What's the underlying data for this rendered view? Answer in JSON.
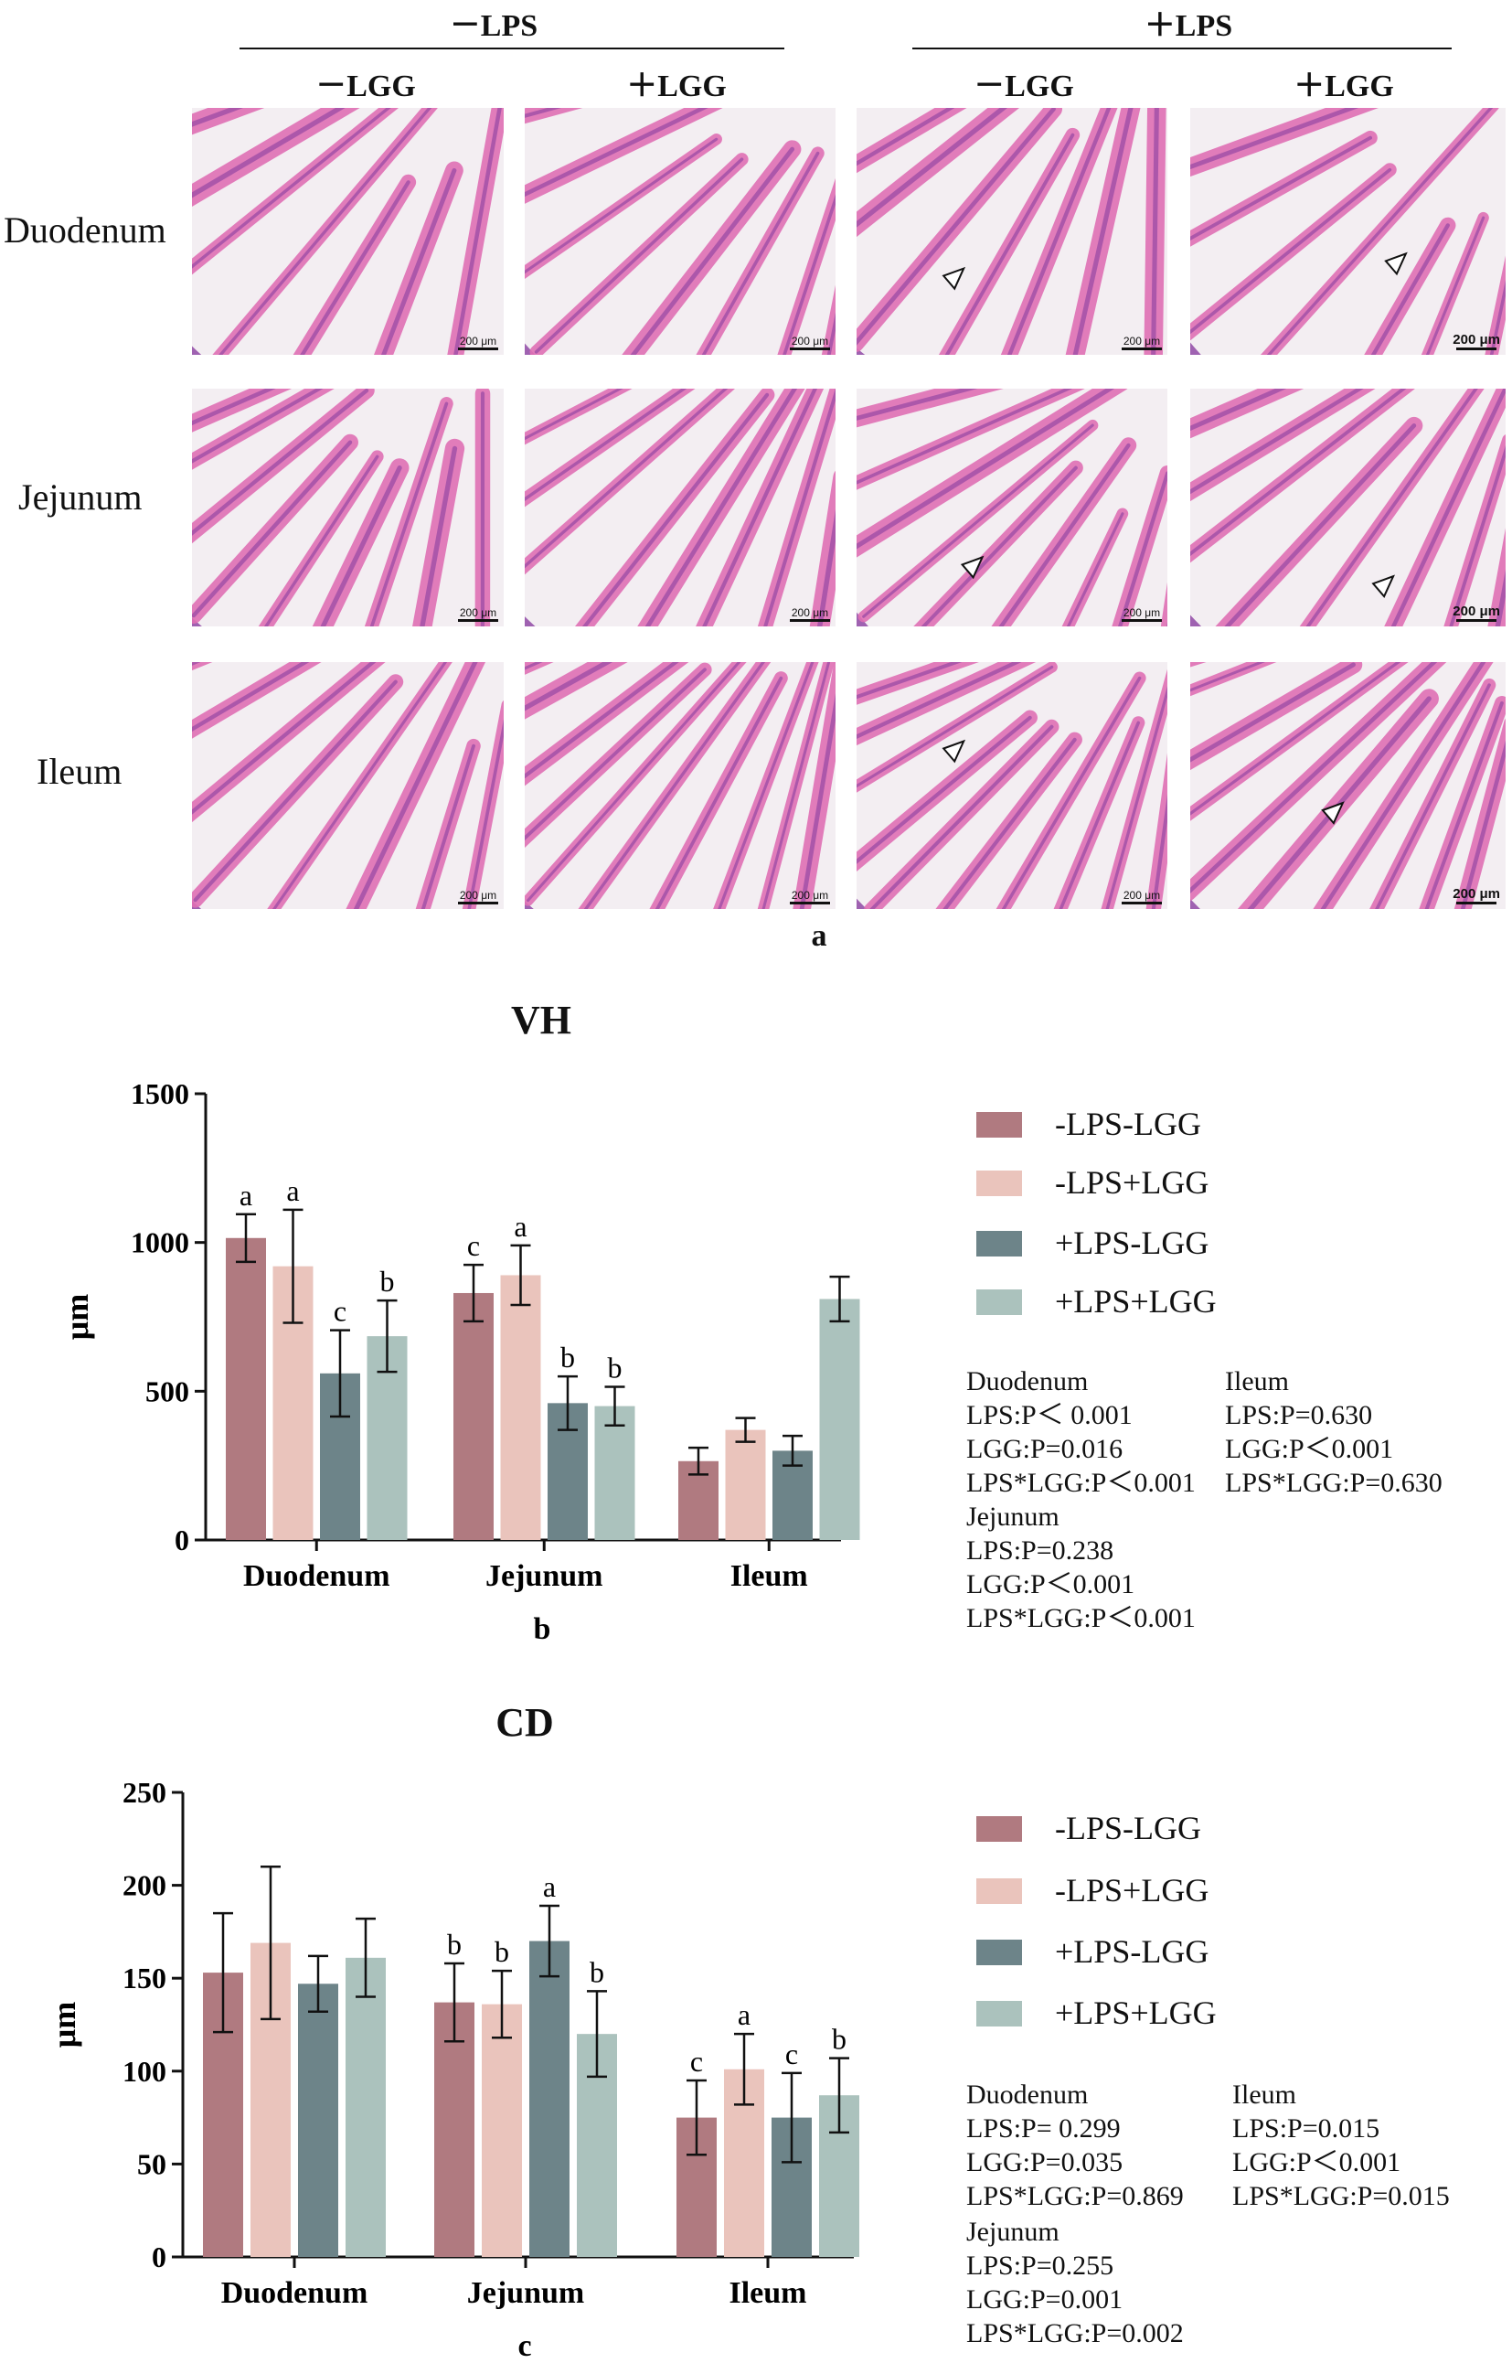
{
  "panel_a": {
    "group_headers": [
      {
        "text": "－LPS"
      },
      {
        "text": "＋LPS"
      }
    ],
    "column_headers": [
      "－LGG",
      "＋LGG",
      "－LGG",
      "＋LGG"
    ],
    "row_labels": [
      "Duodenum",
      "Jejunum",
      "Ileum"
    ],
    "scale_bar": "200 μm",
    "label": "a"
  },
  "colors": {
    "minus_lps_minus_lgg": "#b07a80",
    "minus_lps_plus_lgg": "#eac4bc",
    "plus_lps_minus_lgg": "#6d8489",
    "plus_lps_plus_lgg": "#abc2bd",
    "tissue_pink": "#e070b5",
    "tissue_purple": "#8a3fa0"
  },
  "legend": [
    {
      "label": "-LPS-LGG",
      "color": "#b07a80"
    },
    {
      "label": "-LPS+LGG",
      "color": "#eac4bc"
    },
    {
      "label": "+LPS-LGG",
      "color": "#6d8489"
    },
    {
      "label": "+LPS+LGG",
      "color": "#abc2bd"
    }
  ],
  "chart_data": [
    {
      "type": "bar",
      "title": "VH",
      "ylabel": "μm",
      "xlabel": "b",
      "ylim": [
        0,
        1500
      ],
      "yticks": [
        0,
        500,
        1000,
        1500
      ],
      "categories": [
        "Duodenum",
        "Jejunum",
        "Ileum"
      ],
      "series": [
        {
          "name": "-LPS-LGG",
          "values": [
            1015,
            830,
            265
          ],
          "errors": [
            80,
            95,
            45
          ],
          "letters": [
            "a",
            "c",
            ""
          ]
        },
        {
          "name": "-LPS+LGG",
          "values": [
            920,
            890,
            370
          ],
          "errors": [
            190,
            100,
            40
          ],
          "letters": [
            "a",
            "a",
            ""
          ]
        },
        {
          "name": "+LPS-LGG",
          "values": [
            560,
            460,
            300
          ],
          "errors": [
            145,
            90,
            50
          ],
          "letters": [
            "c",
            "b",
            ""
          ]
        },
        {
          "name": "+LPS+LGG",
          "values": [
            685,
            450,
            810
          ],
          "errors": [
            120,
            65,
            75
          ],
          "letters": [
            "b",
            "b",
            ""
          ]
        }
      ],
      "stats": {
        "duodenum": [
          "Duodenum",
          "LPS:P＜ 0.001",
          "LGG:P=0.016",
          "LPS*LGG:P＜0.001"
        ],
        "ileum": [
          "Ileum",
          "LPS:P=0.630",
          "LGG:P＜0.001",
          "LPS*LGG:P=0.630"
        ],
        "jejunum": [
          "Jejunum",
          "LPS:P=0.238",
          "LGG:P＜0.001",
          "LPS*LGG:P＜0.001"
        ]
      }
    },
    {
      "type": "bar",
      "title": "CD",
      "ylabel": "μm",
      "xlabel": "c",
      "ylim": [
        0,
        250
      ],
      "yticks": [
        0,
        50,
        100,
        150,
        200,
        250
      ],
      "categories": [
        "Duodenum",
        "Jejunum",
        "Ileum"
      ],
      "series": [
        {
          "name": "-LPS-LGG",
          "values": [
            153,
            137,
            75
          ],
          "errors": [
            32,
            21,
            20
          ],
          "letters": [
            "",
            "b",
            "c"
          ]
        },
        {
          "name": "-LPS+LGG",
          "values": [
            169,
            136,
            101
          ],
          "errors": [
            41,
            18,
            19
          ],
          "letters": [
            "",
            "b",
            "a"
          ]
        },
        {
          "name": "+LPS-LGG",
          "values": [
            147,
            170,
            75
          ],
          "errors": [
            15,
            19,
            24
          ],
          "letters": [
            "",
            "a",
            "c"
          ]
        },
        {
          "name": "+LPS+LGG",
          "values": [
            161,
            120,
            87
          ],
          "errors": [
            21,
            23,
            20
          ],
          "letters": [
            "",
            "b",
            "b"
          ]
        }
      ],
      "stats": {
        "duodenum": [
          "Duodenum",
          "LPS:P= 0.299",
          "LGG:P=0.035",
          "LPS*LGG:P=0.869"
        ],
        "ileum": [
          "Ileum",
          "LPS:P=0.015",
          "LGG:P＜0.001",
          "LPS*LGG:P=0.015"
        ],
        "jejunum": [
          "Jejunum",
          "LPS:P=0.255",
          "LGG:P=0.001",
          "LPS*LGG:P=0.002"
        ]
      }
    }
  ]
}
